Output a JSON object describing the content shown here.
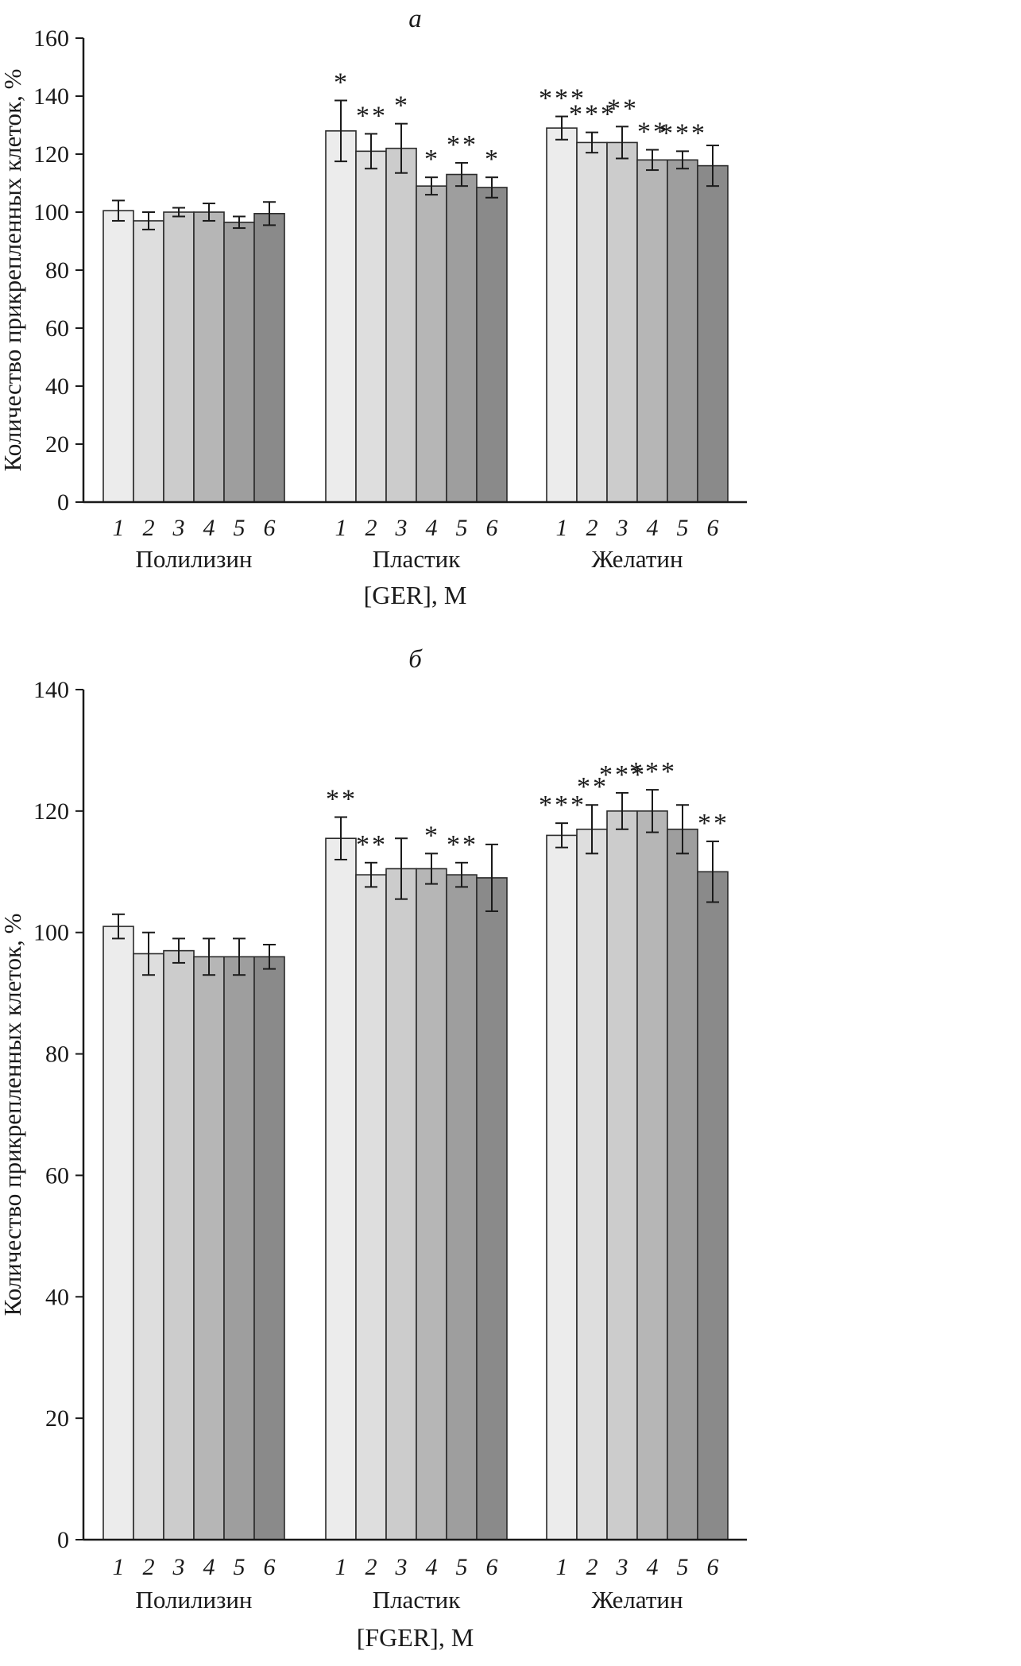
{
  "figure": {
    "bar_colors": [
      "#ececec",
      "#dedede",
      "#cccccc",
      "#b6b6b6",
      "#9e9e9e",
      "#8a8a8a"
    ],
    "bar_stroke": "#2a2a2a"
  },
  "chart_data": [
    {
      "type": "bar",
      "panel_label": "a",
      "ylabel": "Количество прикрепленных клеток, %",
      "xlabel": "[GER], M",
      "ylim": [
        0,
        160
      ],
      "ytick_step": 20,
      "grid": false,
      "bar_labels": [
        "1",
        "2",
        "3",
        "4",
        "5",
        "6"
      ],
      "groups": [
        {
          "name": "Полилизин",
          "values": [
            100.5,
            97,
            100,
            100,
            96.5,
            99.5
          ],
          "errors": [
            3.5,
            3,
            1.5,
            3,
            2,
            4
          ],
          "stars": [
            "",
            "",
            "",
            "",
            "",
            ""
          ]
        },
        {
          "name": "Пластик",
          "values": [
            128,
            121,
            122,
            109,
            113,
            108.5
          ],
          "errors": [
            10.5,
            6,
            8.5,
            3,
            4,
            3.5
          ],
          "stars": [
            "*",
            "**",
            "*",
            "*",
            "**",
            "*"
          ]
        },
        {
          "name": "Желатин",
          "values": [
            129,
            124,
            124,
            118,
            118,
            116
          ],
          "errors": [
            4,
            3.5,
            5.5,
            3.5,
            3,
            7
          ],
          "stars": [
            "***",
            "***",
            "**",
            "**",
            "***",
            ""
          ]
        }
      ]
    },
    {
      "type": "bar",
      "panel_label": "б",
      "ylabel": "Количество прикрепленных клеток, %",
      "xlabel": "[FGER], M",
      "ylim": [
        0,
        140
      ],
      "ytick_step": 20,
      "grid": false,
      "bar_labels": [
        "1",
        "2",
        "3",
        "4",
        "5",
        "6"
      ],
      "groups": [
        {
          "name": "Полилизин",
          "values": [
            101,
            96.5,
            97,
            96,
            96,
            96
          ],
          "errors": [
            2,
            3.5,
            2,
            3,
            3,
            2
          ],
          "stars": [
            "",
            "",
            "",
            "",
            "",
            ""
          ]
        },
        {
          "name": "Пластик",
          "values": [
            115.5,
            109.5,
            110.5,
            110.5,
            109.5,
            109
          ],
          "errors": [
            3.5,
            2,
            5,
            2.5,
            2,
            5.5
          ],
          "stars": [
            "**",
            "**",
            "",
            "*",
            "**",
            ""
          ]
        },
        {
          "name": "Желатин",
          "values": [
            116,
            117,
            120,
            120,
            117,
            110
          ],
          "errors": [
            2,
            4,
            3,
            3.5,
            4,
            5
          ],
          "stars": [
            "***",
            "**",
            "***",
            "***",
            "",
            "**"
          ]
        }
      ]
    }
  ]
}
